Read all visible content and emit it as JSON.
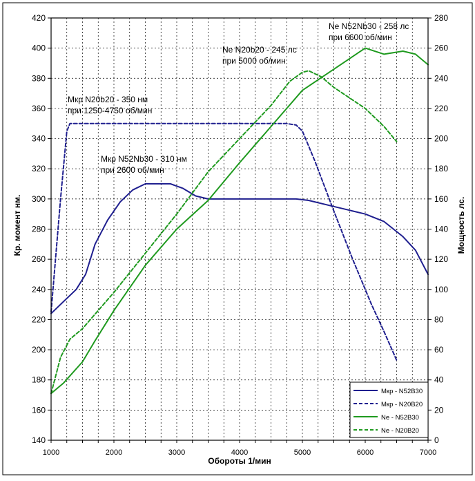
{
  "chart_data": {
    "type": "line",
    "xlabel": "Обороты 1/мин",
    "ylabel_left": "Кр. момент нм.",
    "ylabel_right": "Мощность лс.",
    "xlim": [
      1000,
      7000
    ],
    "xticks": [
      1000,
      2000,
      3000,
      4000,
      5000,
      6000,
      7000
    ],
    "ylim_left": [
      140,
      420
    ],
    "yticks_left": [
      140,
      160,
      180,
      200,
      220,
      240,
      260,
      280,
      300,
      320,
      340,
      360,
      380,
      400,
      420
    ],
    "ylim_right": [
      0,
      280
    ],
    "yticks_right": [
      0,
      20,
      40,
      60,
      80,
      100,
      120,
      140,
      160,
      180,
      200,
      220,
      240,
      260,
      280
    ],
    "grid": true,
    "legend_position": "bottom-right",
    "colors": {
      "blue": "#1f1f8f",
      "green": "#1f9a1f"
    },
    "series": [
      {
        "name": "Мкр - N52B30",
        "axis": "left",
        "color": "#1f1f8f",
        "dashed": false,
        "x": [
          1000,
          1200,
          1400,
          1550,
          1700,
          1900,
          2100,
          2300,
          2500,
          2700,
          2900,
          3100,
          3300,
          3500,
          3700,
          4000,
          4500,
          4900,
          5100,
          5500,
          6000,
          6300,
          6600,
          6800,
          7000
        ],
        "y": [
          224,
          232,
          240,
          250,
          270,
          286,
          298,
          306,
          310,
          310,
          310,
          307,
          302,
          300,
          300,
          300,
          300,
          300,
          299,
          295,
          290,
          285,
          275,
          266,
          250
        ]
      },
      {
        "name": "Мкр - N20B20",
        "axis": "left",
        "color": "#1f1f8f",
        "dashed": true,
        "x": [
          1000,
          1150,
          1250,
          1300,
          2000,
          3000,
          4000,
          4500,
          4750,
          4900,
          5000,
          5200,
          5500,
          5800,
          6100,
          6300,
          6500
        ],
        "y": [
          225,
          300,
          345,
          350,
          350,
          350,
          350,
          350,
          350,
          349,
          345,
          325,
          292,
          260,
          230,
          212,
          193
        ]
      },
      {
        "name": "Ne  - N52B30",
        "axis": "right",
        "color": "#1f9a1f",
        "dashed": false,
        "x": [
          1000,
          1200,
          1500,
          1700,
          2000,
          2500,
          3000,
          3500,
          4000,
          4500,
          5000,
          5500,
          6000,
          6300,
          6600,
          6800,
          7000
        ],
        "y": [
          31,
          38,
          52,
          66,
          86,
          116,
          140,
          159,
          184,
          208,
          232,
          246,
          260,
          256,
          258,
          256,
          249
        ]
      },
      {
        "name": "Ne  - N20B20",
        "axis": "right",
        "color": "#1f9a1f",
        "dashed": true,
        "x": [
          1000,
          1150,
          1300,
          1500,
          2000,
          2500,
          3000,
          3500,
          4000,
          4500,
          4800,
          5000,
          5100,
          5300,
          5500,
          6000,
          6300,
          6500
        ],
        "y": [
          31,
          55,
          67,
          74,
          98,
          124,
          150,
          178,
          200,
          222,
          238,
          244,
          245,
          241,
          234,
          220,
          208,
          198
        ]
      }
    ],
    "annotations": [
      {
        "id": "ne-n52",
        "lines": [
          "Ne N52Nb30 - 258 лс",
          "при 6600 об/мин"
        ]
      },
      {
        "id": "ne-n20",
        "lines": [
          "Ne N20b20 - 245 лс",
          "при 5000 об/мин"
        ]
      },
      {
        "id": "mkr-n20",
        "lines": [
          "Мкр N20b20 - 350 нм",
          "при 1250-4750 об/мин"
        ]
      },
      {
        "id": "mkr-n52",
        "lines": [
          "Мкр N52Nb30 - 310 нм",
          "при 2600 об/мин"
        ]
      }
    ]
  }
}
